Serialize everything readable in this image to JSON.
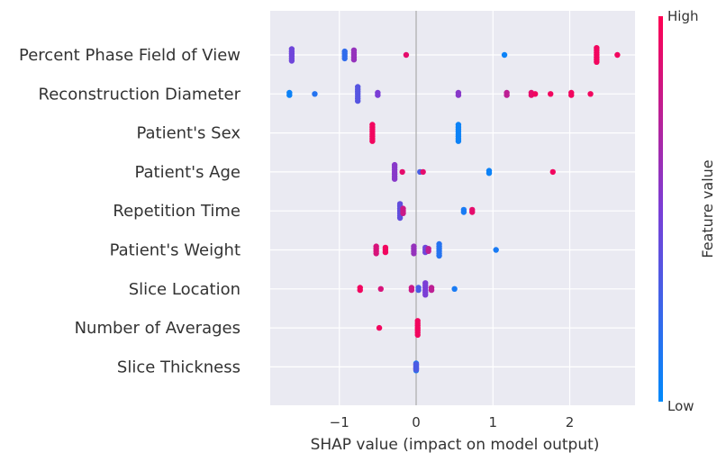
{
  "chart_data": {
    "type": "scatter",
    "subtype": "shap-beeswarm",
    "title": "",
    "xlabel": "SHAP value (impact on model output)",
    "xlim": [
      -1.9,
      2.85
    ],
    "xticks": [
      -1,
      0,
      1,
      2
    ],
    "xtick_labels": [
      "−1",
      "0",
      "1",
      "2"
    ],
    "grid": true,
    "colorbar": {
      "title": "Feature value",
      "high_label": "High",
      "low_label": "Low",
      "low_color": "#008afb",
      "mid_color": "#7b3ed6",
      "high_color": "#ff0052"
    },
    "features": [
      {
        "name": "Percent Phase Field of View",
        "points": [
          {
            "x": -1.62,
            "c": 0.45,
            "n": 6
          },
          {
            "x": -0.93,
            "c": 0.2,
            "n": 4
          },
          {
            "x": -0.81,
            "c": 0.6,
            "n": 5
          },
          {
            "x": -0.13,
            "c": 0.9,
            "n": 1
          },
          {
            "x": 1.15,
            "c": 0.05,
            "n": 1
          },
          {
            "x": 2.35,
            "c": 0.95,
            "n": 7
          },
          {
            "x": 2.62,
            "c": 0.95,
            "n": 1
          }
        ]
      },
      {
        "name": "Reconstruction Diameter",
        "points": [
          {
            "x": -1.65,
            "c": 0.05,
            "n": 2
          },
          {
            "x": -1.32,
            "c": 0.15,
            "n": 1
          },
          {
            "x": -0.76,
            "c": 0.35,
            "n": 7
          },
          {
            "x": -0.5,
            "c": 0.5,
            "n": 2
          },
          {
            "x": 0.55,
            "c": 0.55,
            "n": 2
          },
          {
            "x": 1.18,
            "c": 0.75,
            "n": 2
          },
          {
            "x": 1.5,
            "c": 0.9,
            "n": 2
          },
          {
            "x": 1.55,
            "c": 0.95,
            "n": 1
          },
          {
            "x": 1.75,
            "c": 0.95,
            "n": 1
          },
          {
            "x": 2.02,
            "c": 0.95,
            "n": 2
          },
          {
            "x": 2.27,
            "c": 0.95,
            "n": 1
          }
        ]
      },
      {
        "name": "Patient's Sex",
        "points": [
          {
            "x": -0.57,
            "c": 0.95,
            "n": 8
          },
          {
            "x": 0.55,
            "c": 0.05,
            "n": 8
          }
        ]
      },
      {
        "name": "Patient's Age",
        "points": [
          {
            "x": -0.28,
            "c": 0.55,
            "n": 7
          },
          {
            "x": -0.18,
            "c": 0.9,
            "n": 1
          },
          {
            "x": 0.05,
            "c": 0.3,
            "n": 1
          },
          {
            "x": 0.09,
            "c": 0.9,
            "n": 1
          },
          {
            "x": 0.95,
            "c": 0.05,
            "n": 2
          },
          {
            "x": 1.78,
            "c": 0.95,
            "n": 1
          }
        ]
      },
      {
        "name": "Repetition Time",
        "points": [
          {
            "x": -0.21,
            "c": 0.4,
            "n": 7
          },
          {
            "x": -0.17,
            "c": 0.8,
            "n": 3
          },
          {
            "x": 0.62,
            "c": 0.1,
            "n": 2
          },
          {
            "x": 0.73,
            "c": 0.9,
            "n": 2
          }
        ]
      },
      {
        "name": "Patient's Weight",
        "points": [
          {
            "x": -0.52,
            "c": 0.85,
            "n": 4
          },
          {
            "x": -0.4,
            "c": 0.95,
            "n": 3
          },
          {
            "x": -0.03,
            "c": 0.6,
            "n": 4
          },
          {
            "x": 0.12,
            "c": 0.45,
            "n": 3
          },
          {
            "x": 0.16,
            "c": 0.75,
            "n": 2
          },
          {
            "x": 0.3,
            "c": 0.15,
            "n": 6
          },
          {
            "x": 1.04,
            "c": 0.1,
            "n": 1
          }
        ]
      },
      {
        "name": "Slice Location",
        "points": [
          {
            "x": -0.73,
            "c": 0.95,
            "n": 2
          },
          {
            "x": -0.46,
            "c": 0.85,
            "n": 1
          },
          {
            "x": -0.06,
            "c": 0.8,
            "n": 2
          },
          {
            "x": 0.03,
            "c": 0.3,
            "n": 2
          },
          {
            "x": 0.12,
            "c": 0.5,
            "n": 6
          },
          {
            "x": 0.2,
            "c": 0.75,
            "n": 2
          },
          {
            "x": 0.5,
            "c": 0.1,
            "n": 1
          }
        ]
      },
      {
        "name": "Number of Averages",
        "points": [
          {
            "x": -0.48,
            "c": 0.95,
            "n": 1
          },
          {
            "x": 0.02,
            "c": 0.95,
            "n": 7
          }
        ]
      },
      {
        "name": "Slice Thickness",
        "points": [
          {
            "x": 0.0,
            "c": 0.1,
            "n": 4
          },
          {
            "x": 0.0,
            "c": 0.9,
            "n": 3
          },
          {
            "x": 0.0,
            "c": 0.3,
            "n": 3
          }
        ]
      }
    ]
  }
}
